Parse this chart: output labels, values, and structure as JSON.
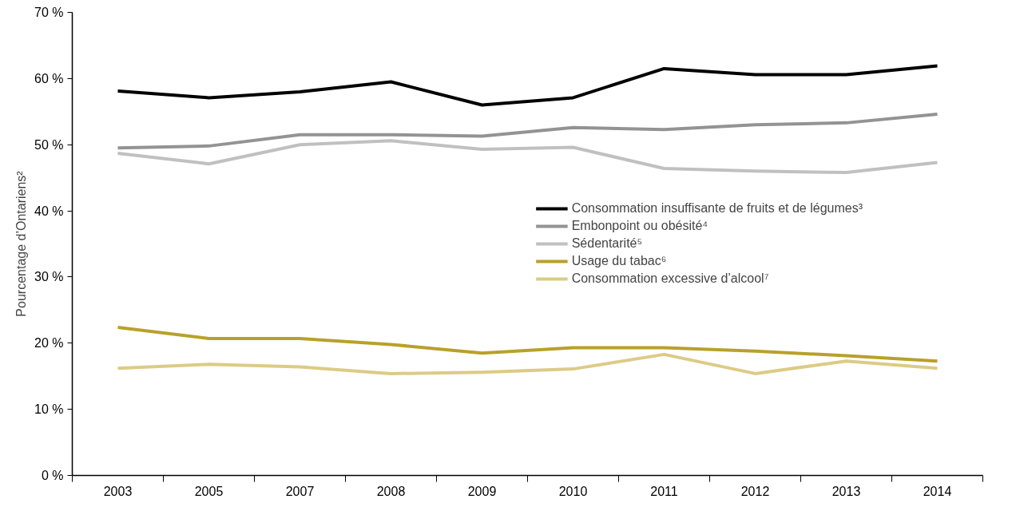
{
  "chart_data": {
    "type": "line",
    "ylabel": "Pourcentage d’Ontariens²",
    "categories": [
      "2003",
      "2005",
      "2007",
      "2008",
      "2009",
      "2010",
      "2011",
      "2012",
      "2013",
      "2014"
    ],
    "ylim": [
      0,
      70
    ],
    "yticks": [
      {
        "value": 0,
        "label": "0 %"
      },
      {
        "value": 10,
        "label": "10 %"
      },
      {
        "value": 20,
        "label": "20 %"
      },
      {
        "value": 30,
        "label": "30 %"
      },
      {
        "value": 40,
        "label": "40 %"
      },
      {
        "value": 50,
        "label": "50 %"
      },
      {
        "value": 60,
        "label": "60 %"
      },
      {
        "value": 70,
        "label": "70 %"
      }
    ],
    "grid": false,
    "legend": "right",
    "marker": "none",
    "line_style": "solid",
    "series": [
      {
        "name": "Consommation insuffisante de fruits et de légumes³",
        "color": "#000000",
        "values": [
          58.1,
          57.1,
          58.0,
          59.5,
          56.0,
          57.1,
          61.5,
          60.6,
          60.6,
          61.9
        ]
      },
      {
        "name": "Embonpoint ou obésité⁴",
        "color": "#939393",
        "values": [
          49.5,
          49.8,
          51.5,
          51.5,
          51.3,
          52.6,
          52.3,
          53.0,
          53.3,
          54.6
        ]
      },
      {
        "name": "Sédentarité⁵",
        "color": "#c0c0c0",
        "values": [
          48.7,
          47.1,
          50.0,
          50.6,
          49.3,
          49.6,
          46.4,
          46.0,
          45.8,
          47.3
        ]
      },
      {
        "name": "Usage du tabac⁶",
        "color": "#b8a12a",
        "values": [
          22.4,
          20.7,
          20.7,
          19.8,
          18.5,
          19.3,
          19.3,
          18.8,
          18.1,
          17.3
        ]
      },
      {
        "name": "Consommation excessive d’alcool⁷",
        "color": "#dccb86",
        "values": [
          16.2,
          16.8,
          16.4,
          15.4,
          15.6,
          16.1,
          18.3,
          15.4,
          17.3,
          16.2
        ]
      }
    ]
  }
}
